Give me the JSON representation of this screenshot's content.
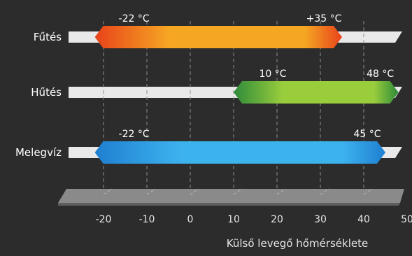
{
  "chart_data": {
    "type": "range-bar",
    "categories": [
      "Fűtés",
      "Hűtés",
      "Melegvíz"
    ],
    "series": [
      {
        "category": "Fűtés",
        "min": -22,
        "max": 35,
        "min_label": "-22 °C",
        "max_label": "+35 °C",
        "colors": [
          "#e8431a",
          "#f5a623"
        ]
      },
      {
        "category": "Hűtés",
        "min": 10,
        "max": 48,
        "min_label": "10 °C",
        "max_label": "48 °C",
        "colors": [
          "#2e8b3a",
          "#9acd3c"
        ]
      },
      {
        "category": "Melegvíz",
        "min": -22,
        "max": 45,
        "min_label": "-22 °C",
        "max_label": "45 °C",
        "colors": [
          "#1f7fd1",
          "#3db3ee"
        ]
      }
    ],
    "x_ticks": [
      "-20",
      "-10",
      "0",
      "10",
      "20",
      "30",
      "40",
      "50"
    ],
    "xlim": [
      -20,
      50
    ],
    "xlabel": "Külső levegő hőmérséklete",
    "grid": "dashed vertical"
  }
}
